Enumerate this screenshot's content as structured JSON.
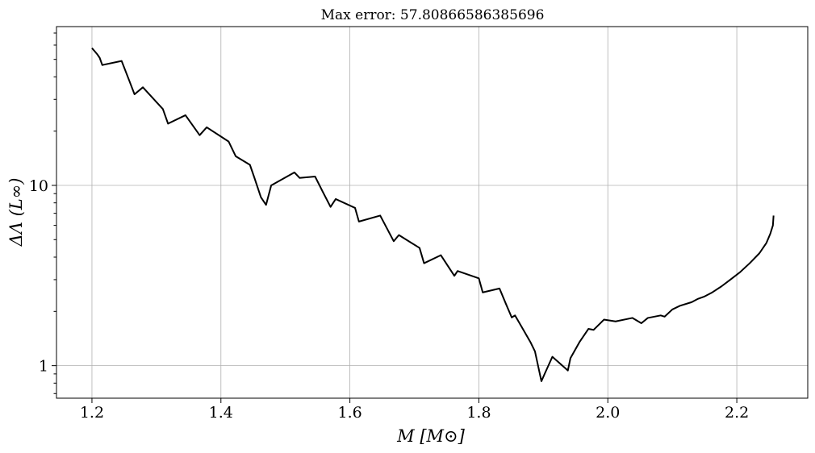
{
  "chart_data": {
    "type": "line",
    "title": "Max error: 57.80866586385696",
    "xlabel": "M [M⊙]",
    "ylabel": "ΔΛ (L∞)",
    "xlim": [
      1.145,
      2.31
    ],
    "ylim": [
      0.66,
      76
    ],
    "yscale": "log",
    "grid": true,
    "x_ticks": [
      1.2,
      1.4,
      1.6,
      1.8,
      2.0,
      2.2
    ],
    "x_tick_labels": [
      "1.2",
      "1.4",
      "1.6",
      "1.8",
      "2.0",
      "2.2"
    ],
    "y_ticks": [
      1,
      10
    ],
    "y_tick_labels": [
      "1",
      "10"
    ],
    "series": [
      {
        "color": "#000000",
        "x": [
          1.2,
          1.208,
          1.212,
          1.216,
          1.246,
          1.258,
          1.266,
          1.279,
          1.31,
          1.318,
          1.345,
          1.367,
          1.378,
          1.412,
          1.423,
          1.445,
          1.452,
          1.462,
          1.47,
          1.478,
          1.514,
          1.522,
          1.546,
          1.558,
          1.57,
          1.578,
          1.608,
          1.614,
          1.647,
          1.668,
          1.672,
          1.676,
          1.708,
          1.715,
          1.741,
          1.762,
          1.767,
          1.8,
          1.806,
          1.832,
          1.842,
          1.851,
          1.856,
          1.866,
          1.88,
          1.887,
          1.897,
          1.902,
          1.914,
          1.938,
          1.942,
          1.956,
          1.97,
          1.978,
          1.994,
          2.012,
          2.038,
          2.052,
          2.062,
          2.082,
          2.088,
          2.1,
          2.112,
          2.13,
          2.14,
          2.15,
          2.162,
          2.176,
          2.19,
          2.205,
          2.22,
          2.235,
          2.246,
          2.252,
          2.256,
          2.257
        ],
        "y": [
          57.8,
          53.5,
          51.0,
          46.5,
          49.0,
          38.0,
          32.0,
          35.0,
          26.5,
          22.0,
          24.5,
          19.0,
          21.0,
          17.5,
          14.5,
          13.0,
          11.0,
          8.6,
          7.8,
          10.0,
          11.8,
          11.0,
          11.2,
          9.2,
          7.6,
          8.4,
          7.5,
          6.3,
          6.8,
          4.9,
          5.1,
          5.3,
          4.5,
          3.7,
          4.1,
          3.15,
          3.35,
          3.05,
          2.55,
          2.68,
          2.2,
          1.85,
          1.9,
          1.65,
          1.35,
          1.2,
          0.82,
          0.9,
          1.12,
          0.94,
          1.1,
          1.35,
          1.6,
          1.58,
          1.8,
          1.76,
          1.84,
          1.72,
          1.84,
          1.9,
          1.87,
          2.05,
          2.15,
          2.25,
          2.35,
          2.42,
          2.55,
          2.75,
          3.0,
          3.3,
          3.7,
          4.2,
          4.8,
          5.4,
          6.0,
          6.8
        ]
      }
    ]
  }
}
